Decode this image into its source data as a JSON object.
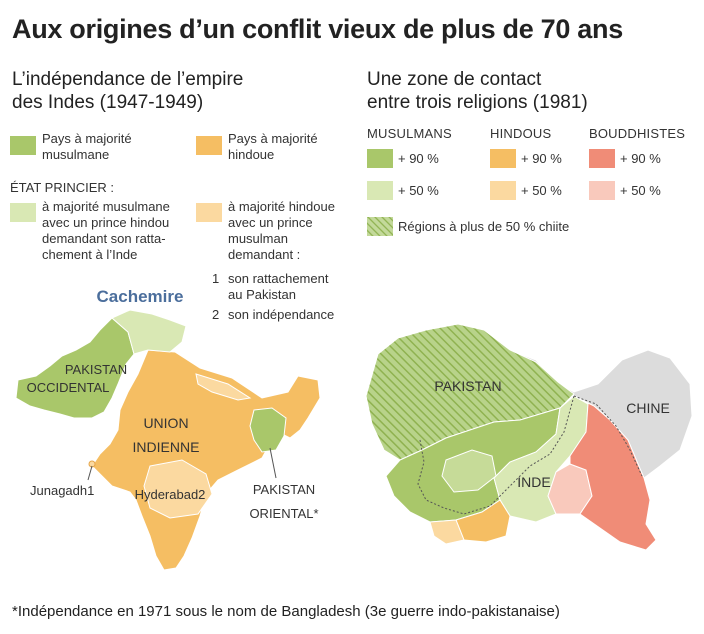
{
  "title": "Aux origines d’un conflit vieux de plus de 70 ans",
  "left": {
    "title_line1": "L’indépendance de l’empire",
    "title_line2": "des Indes (1947-1949)",
    "legend": {
      "muslim_l1": "Pays à majorité",
      "muslim_l2": "musulmane",
      "hindu_l1": "Pays à majorité",
      "hindu_l2": "hindoue",
      "princely_header": "ÉTAT PRINCIER :",
      "princely_muslim_lines": [
        "à majorité musulmane",
        "avec un prince hindou",
        "demandant son ratta-",
        "chement à l’Inde"
      ],
      "princely_hindu_lines": [
        "à majorité hindoue",
        "avec un prince",
        "musulman",
        "demandant :"
      ],
      "option1_num": "1",
      "option1_l1": "son rattachement",
      "option1_l2": "au Pakistan",
      "option2_num": "2",
      "option2_l1": "son indépendance"
    },
    "map_labels": {
      "cachemire": "Cachemire",
      "pakistan_occ_l1": "PAKISTAN",
      "pakistan_occ_l2": "OCCIDENTAL",
      "union_l1": "UNION",
      "union_l2": "INDIENNE",
      "junagadh": "Junagadh1",
      "hyderabad": "Hyderabad2",
      "pakistan_or_l1": "PAKISTAN",
      "pakistan_or_l2": "ORIENTAL*"
    }
  },
  "right": {
    "title_line1": "Une zone de contact",
    "title_line2": "entre trois religions (1981)",
    "legend": {
      "muslims": "MUSULMANS",
      "hindus": "HINDOUS",
      "buddhists": "BOUDDHISTES",
      "p90": "+ 90 %",
      "p50": "+ 50 %",
      "shia": "Régions à plus de 50 % chiite"
    },
    "map_labels": {
      "pakistan": "PAKISTAN",
      "chine": "CHINE",
      "inde": "INDE"
    }
  },
  "footnote": "*Indépendance en 1971 sous le nom de Bangladesh (3e guerre indo-pakistanaise)",
  "colors": {
    "muslim_dark": "#a9c76a",
    "muslim_light": "#d9e8b4",
    "hindu_dark": "#f5be63",
    "hindu_light": "#fbd9a0",
    "buddhist_dark": "#f08c77",
    "buddhist_light": "#f9c9bc",
    "china_grey": "#dcdcdc",
    "cachemire_blue": "#4b6e9c"
  }
}
